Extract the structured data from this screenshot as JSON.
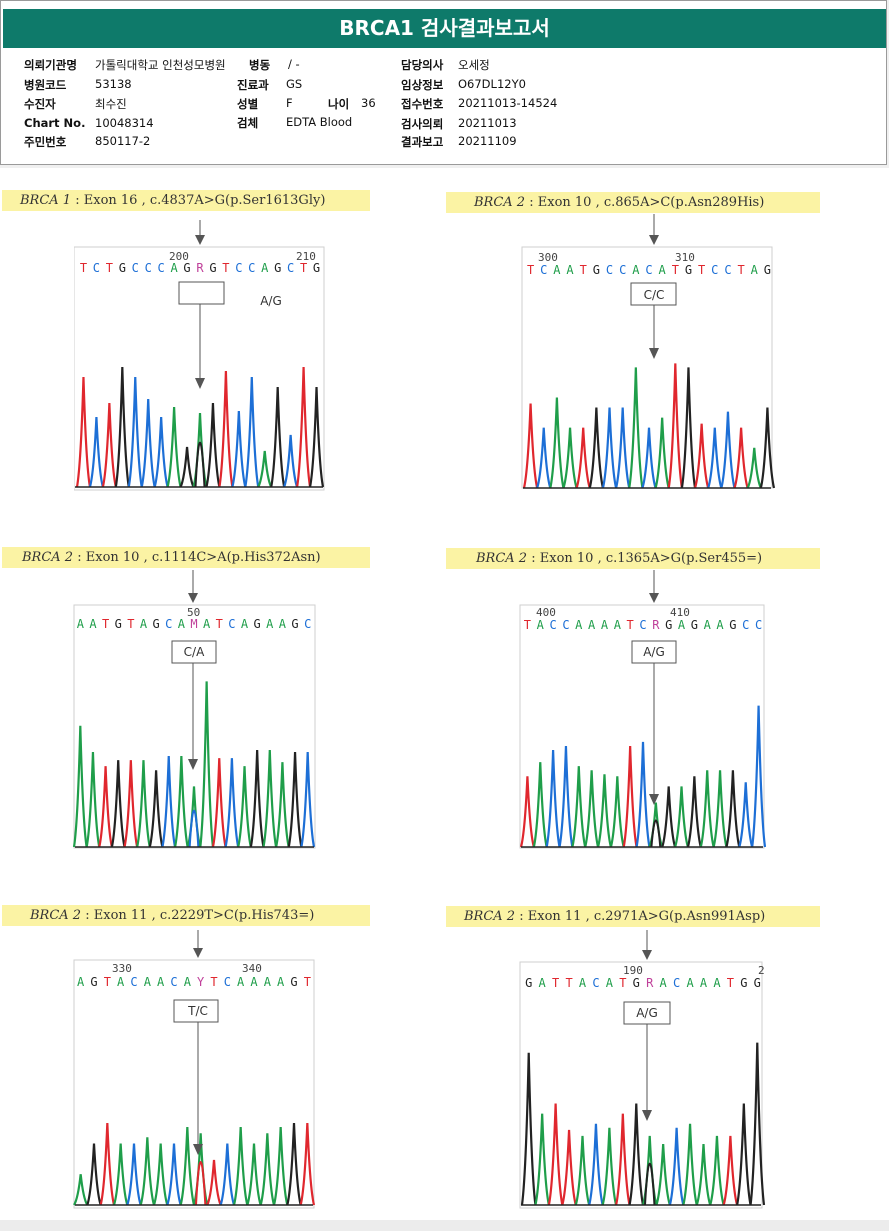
{
  "report": {
    "title": "BRCA1 검사결과보고서",
    "fields": {
      "institution": {
        "label": "의뢰기관명",
        "value": "가톨릭대학교 인천성모병원"
      },
      "ward": {
        "label": "병동",
        "value": "/ -"
      },
      "doctor": {
        "label": "담당의사",
        "value": "오세정"
      },
      "hospital_code": {
        "label": "병원코드",
        "value": "53138"
      },
      "department": {
        "label": "진료과",
        "value": "GS"
      },
      "clinical_info": {
        "label": "임상정보",
        "value": "O67DL12Y0"
      },
      "patient": {
        "label": "수진자",
        "value": "최수진"
      },
      "sex": {
        "label": "성별",
        "value": "F"
      },
      "age": {
        "label": "나이",
        "value": "36"
      },
      "receipt_no": {
        "label": "접수번호",
        "value": "20211013-14524"
      },
      "chart_no": {
        "label": "Chart No.",
        "value": "10048314"
      },
      "specimen": {
        "label": "검체",
        "value": "EDTA Blood"
      },
      "request_date": {
        "label": "검사의뢰",
        "value": "20211013"
      },
      "resident_no": {
        "label": "주민번호",
        "value": "850117-2"
      },
      "report_date": {
        "label": "결과보고",
        "value": "20211109"
      }
    }
  },
  "panels": [
    {
      "gene": "BRCA 1",
      "desc": "Exon 16 , c.4837A>G(p.Ser1613Gly)",
      "pos_left": "200",
      "pos_right": "210",
      "genotype": "A/G",
      "sequence": "TCTGCCCAGRGTCCAGCTG"
    },
    {
      "gene": "BRCA 2",
      "desc": "Exon 10 , c.865A>C(p.Asn289His)",
      "pos_left": "300",
      "pos_right": "310",
      "genotype": "C/C",
      "sequence": "TCAATGCCACATGTCCTAG"
    },
    {
      "gene": "BRCA 2",
      "desc": "Exon 10 , c.1114C>A(p.His372Asn)",
      "pos_left": "",
      "pos_right": "50",
      "genotype": "C/A",
      "sequence": "AATGTAGCAMATCAGAAGC"
    },
    {
      "gene": "BRCA 2",
      "desc": "Exon 10 , c.1365A>G(p.Ser455=)",
      "pos_left": "400",
      "pos_right": "410",
      "genotype": "A/G",
      "sequence": "TACCAAAATCRGAGAAGCC"
    },
    {
      "gene": "BRCA 2",
      "desc": "Exon 11 , c.2229T>C(p.His743=)",
      "pos_left": "330",
      "pos_right": "340",
      "genotype": "T/C",
      "sequence": "AGTACAACAYTCAAAAGT"
    },
    {
      "gene": "BRCA 2",
      "desc": "Exon 11 , c.2971A>G(p.Asn991Asp)",
      "pos_left": "190",
      "pos_right": "2",
      "genotype": "A/G",
      "sequence": "GATTACATGRACAAATGG"
    }
  ],
  "colors": {
    "A": "#1f9e4a",
    "C": "#1d6fd6",
    "G": "#222222",
    "T": "#e0272e",
    "R": "#c0409a",
    "Y": "#c0409a",
    "M": "#c0409a"
  }
}
